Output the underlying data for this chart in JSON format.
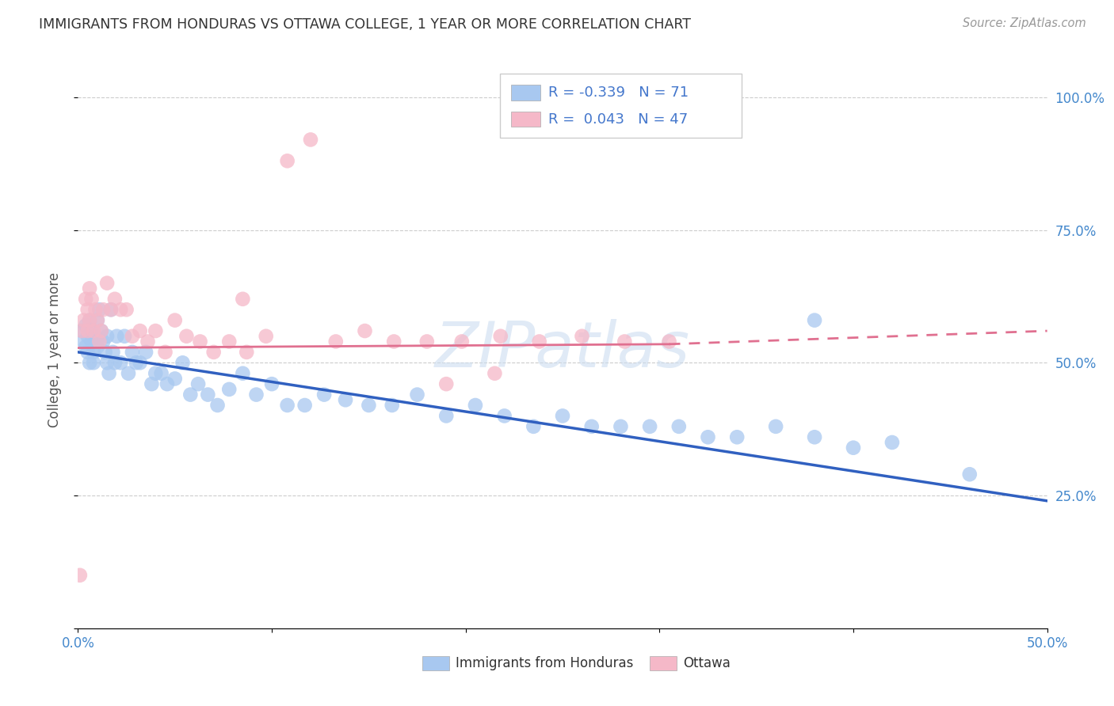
{
  "title": "IMMIGRANTS FROM HONDURAS VS OTTAWA COLLEGE, 1 YEAR OR MORE CORRELATION CHART",
  "source": "Source: ZipAtlas.com",
  "ylabel": "College, 1 year or more",
  "xlim": [
    0.0,
    0.5
  ],
  "ylim": [
    0.0,
    1.05
  ],
  "blue_R": -0.339,
  "blue_N": 71,
  "pink_R": 0.043,
  "pink_N": 47,
  "blue_color": "#A8C8F0",
  "pink_color": "#F5B8C8",
  "blue_line_color": "#3060C0",
  "pink_line_color": "#E07090",
  "watermark": "ZIPatlas",
  "blue_scatter_x": [
    0.002,
    0.003,
    0.004,
    0.004,
    0.005,
    0.005,
    0.006,
    0.006,
    0.007,
    0.007,
    0.008,
    0.008,
    0.009,
    0.01,
    0.01,
    0.011,
    0.012,
    0.013,
    0.014,
    0.015,
    0.015,
    0.016,
    0.017,
    0.018,
    0.019,
    0.02,
    0.022,
    0.024,
    0.026,
    0.028,
    0.03,
    0.032,
    0.035,
    0.038,
    0.04,
    0.043,
    0.046,
    0.05,
    0.054,
    0.058,
    0.062,
    0.067,
    0.072,
    0.078,
    0.085,
    0.092,
    0.1,
    0.108,
    0.117,
    0.127,
    0.138,
    0.15,
    0.162,
    0.175,
    0.19,
    0.205,
    0.22,
    0.235,
    0.25,
    0.265,
    0.28,
    0.295,
    0.31,
    0.325,
    0.34,
    0.36,
    0.38,
    0.4,
    0.38,
    0.42,
    0.46
  ],
  "blue_scatter_y": [
    0.56,
    0.54,
    0.57,
    0.53,
    0.55,
    0.52,
    0.58,
    0.5,
    0.54,
    0.56,
    0.52,
    0.5,
    0.55,
    0.53,
    0.58,
    0.6,
    0.56,
    0.54,
    0.52,
    0.5,
    0.55,
    0.48,
    0.6,
    0.52,
    0.5,
    0.55,
    0.5,
    0.55,
    0.48,
    0.52,
    0.5,
    0.5,
    0.52,
    0.46,
    0.48,
    0.48,
    0.46,
    0.47,
    0.5,
    0.44,
    0.46,
    0.44,
    0.42,
    0.45,
    0.48,
    0.44,
    0.46,
    0.42,
    0.42,
    0.44,
    0.43,
    0.42,
    0.42,
    0.44,
    0.4,
    0.42,
    0.4,
    0.38,
    0.4,
    0.38,
    0.38,
    0.38,
    0.38,
    0.36,
    0.36,
    0.38,
    0.36,
    0.34,
    0.58,
    0.35,
    0.29
  ],
  "pink_scatter_x": [
    0.001,
    0.002,
    0.003,
    0.004,
    0.005,
    0.005,
    0.006,
    0.006,
    0.007,
    0.008,
    0.009,
    0.01,
    0.011,
    0.012,
    0.013,
    0.015,
    0.017,
    0.019,
    0.022,
    0.025,
    0.028,
    0.032,
    0.036,
    0.04,
    0.045,
    0.05,
    0.056,
    0.063,
    0.07,
    0.078,
    0.087,
    0.097,
    0.108,
    0.12,
    0.133,
    0.148,
    0.163,
    0.18,
    0.198,
    0.218,
    0.238,
    0.26,
    0.282,
    0.305,
    0.215,
    0.19,
    0.085
  ],
  "pink_scatter_y": [
    0.1,
    0.56,
    0.58,
    0.62,
    0.6,
    0.56,
    0.64,
    0.58,
    0.62,
    0.56,
    0.6,
    0.58,
    0.54,
    0.56,
    0.6,
    0.65,
    0.6,
    0.62,
    0.6,
    0.6,
    0.55,
    0.56,
    0.54,
    0.56,
    0.52,
    0.58,
    0.55,
    0.54,
    0.52,
    0.54,
    0.52,
    0.55,
    0.88,
    0.92,
    0.54,
    0.56,
    0.54,
    0.54,
    0.54,
    0.55,
    0.54,
    0.55,
    0.54,
    0.54,
    0.48,
    0.46,
    0.62
  ]
}
